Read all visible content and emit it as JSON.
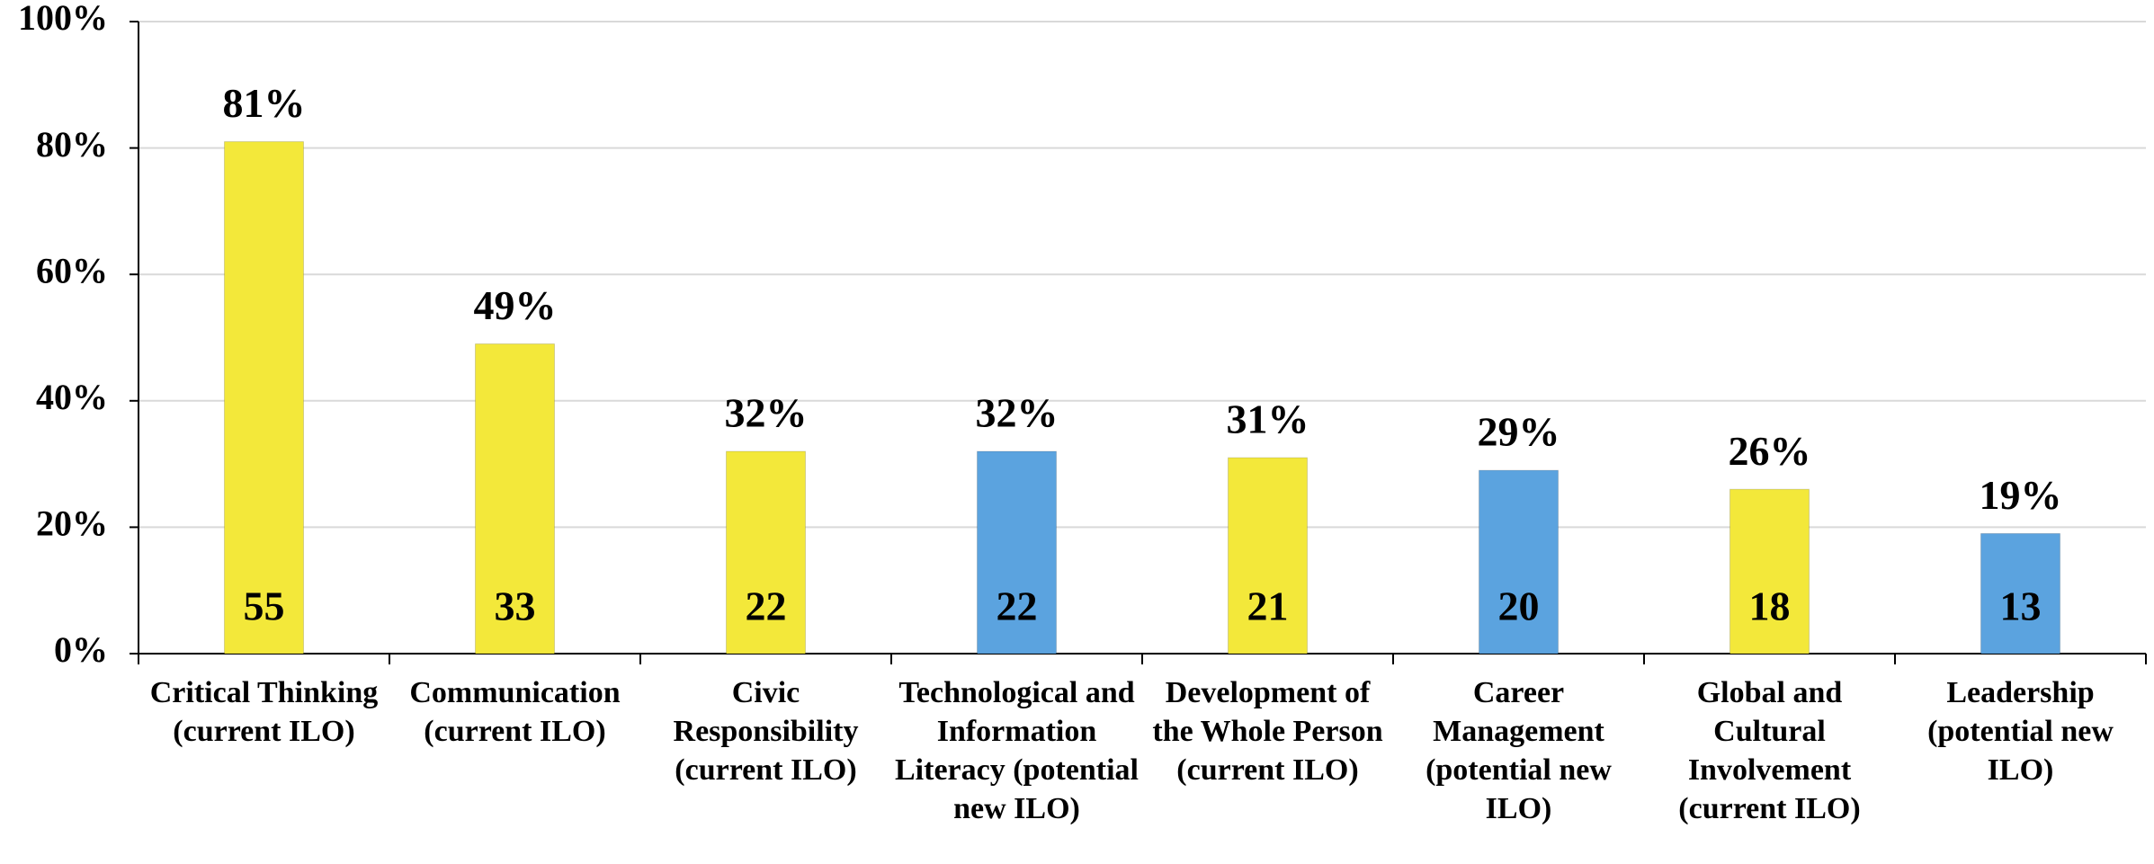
{
  "chart_data": {
    "type": "bar",
    "categories": [
      "Critical Thinking (current ILO)",
      "Communication (current ILO)",
      "Civic Responsibility (current ILO)",
      "Technological and Information Literacy (potential new ILO)",
      "Development of the Whole Person (current ILO)",
      "Career Management (potential new ILO)",
      "Global and Cultural Involvement (current ILO)",
      "Leadership (potential new ILO)"
    ],
    "values": [
      81,
      49,
      32,
      32,
      31,
      29,
      26,
      19
    ],
    "value_labels": [
      "81%",
      "49%",
      "32%",
      "32%",
      "31%",
      "29%",
      "26%",
      "19%"
    ],
    "counts": [
      55,
      33,
      22,
      22,
      21,
      20,
      18,
      13
    ],
    "colors": [
      "#f3e83a",
      "#f3e83a",
      "#f3e83a",
      "#5ba3df",
      "#f3e83a",
      "#5ba3df",
      "#f3e83a",
      "#5ba3df"
    ],
    "ylim": [
      0,
      100
    ],
    "yticks": [
      {
        "value": 0,
        "label": "0%"
      },
      {
        "value": 20,
        "label": "20%"
      },
      {
        "value": 40,
        "label": "40%"
      },
      {
        "value": 60,
        "label": "60%"
      },
      {
        "value": 80,
        "label": "80%"
      },
      {
        "value": 100,
        "label": "100%"
      }
    ],
    "grid": true
  }
}
